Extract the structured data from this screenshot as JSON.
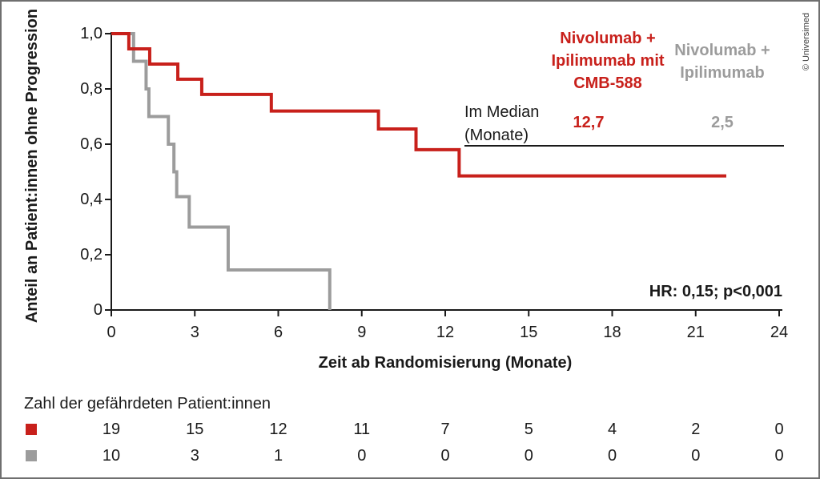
{
  "figure": {
    "copyright": "© Universimed"
  },
  "chart_data": {
    "type": "line",
    "variant": "kaplan-meier-step",
    "title": "",
    "xlabel": "Zeit ab Randomisierung (Monate)",
    "ylabel": "Anteil an Patient:innen ohne Progression",
    "xlim": [
      0,
      24
    ],
    "ylim": [
      0,
      1.0
    ],
    "x_ticks": [
      0,
      3,
      6,
      9,
      12,
      15,
      18,
      21,
      24
    ],
    "y_tick_values": [
      1.0,
      0.8,
      0.6,
      0.4,
      0.2,
      0
    ],
    "y_tick_labels": [
      "1,0",
      "0,8",
      "0,6",
      "0,4",
      "0,2",
      "0"
    ],
    "grid": false,
    "legend_position": "top-right",
    "axis_color": "#1a1a1a",
    "hr_text": "HR: 0,15; p<0,001",
    "legend": {
      "arm1_lines": [
        "Nivolumab +",
        "Ipilimumab mit",
        "CMB-588"
      ],
      "arm2_lines": [
        "Nivolumab +",
        "Ipilimumab"
      ]
    },
    "median": {
      "label_line1": "Im Median",
      "label_line2": "(Monate)",
      "arm1_value": "12,7",
      "arm2_value": "2,5"
    },
    "series": [
      {
        "name": "Nivolumab + Ipilimumab mit CMB-588",
        "color": "#c8201b",
        "median_months": 12.7,
        "end_month": 22.1,
        "steps": [
          [
            0,
            1.0
          ],
          [
            0.63,
            0.945
          ],
          [
            1.38,
            0.89
          ],
          [
            2.39,
            0.835
          ],
          [
            3.25,
            0.78
          ],
          [
            5.75,
            0.72
          ],
          [
            9.6,
            0.655
          ],
          [
            10.95,
            0.58
          ],
          [
            12.5,
            0.485
          ]
        ]
      },
      {
        "name": "Nivolumab + Ipilimumab",
        "color": "#9c9c9c",
        "median_months": 2.5,
        "end_month": 7.85,
        "steps": [
          [
            0,
            1.0
          ],
          [
            0.8,
            0.9
          ],
          [
            1.25,
            0.8
          ],
          [
            1.35,
            0.7
          ],
          [
            2.05,
            0.6
          ],
          [
            2.25,
            0.5
          ],
          [
            2.35,
            0.41
          ],
          [
            2.8,
            0.3
          ],
          [
            4.2,
            0.145
          ],
          [
            7.85,
            0
          ]
        ]
      }
    ]
  },
  "risk_table": {
    "title": "Zahl der gefährdeten Patient:innen",
    "time_points": [
      0,
      3,
      6,
      9,
      12,
      15,
      18,
      21,
      24
    ],
    "rows": [
      {
        "name": "Nivolumab + Ipilimumab mit CMB-588",
        "color": "#c8201b",
        "counts": [
          "19",
          "15",
          "12",
          "11",
          "7",
          "5",
          "4",
          "2",
          "0"
        ]
      },
      {
        "name": "Nivolumab + Ipilimumab",
        "color": "#9c9c9c",
        "counts": [
          "10",
          "3",
          "1",
          "0",
          "0",
          "0",
          "0",
          "0",
          "0"
        ]
      }
    ]
  }
}
